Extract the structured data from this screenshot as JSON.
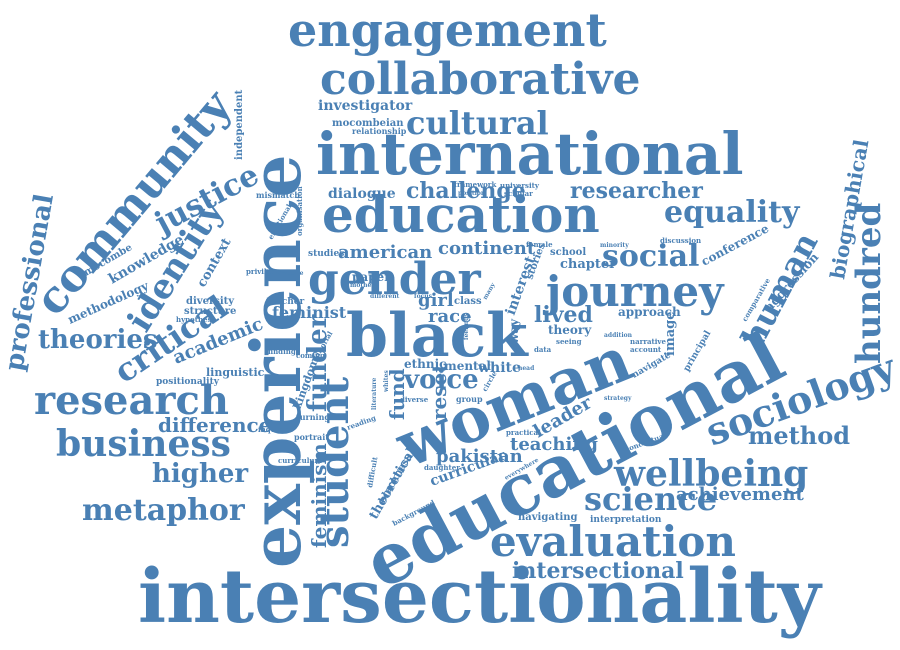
{
  "palette": {
    "word_color": "#4a80b4",
    "background": "#ffffff"
  },
  "words": [
    {
      "id": "intersectionality",
      "text": "intersectionality",
      "weight": 100
    },
    {
      "id": "educational",
      "text": "educational",
      "weight": 98
    },
    {
      "id": "experience",
      "text": "experience",
      "weight": 95
    },
    {
      "id": "woman",
      "text": "woman",
      "weight": 92
    },
    {
      "id": "international",
      "text": "international",
      "weight": 88
    },
    {
      "id": "education",
      "text": "education",
      "weight": 85
    },
    {
      "id": "black",
      "text": "black",
      "weight": 84
    },
    {
      "id": "engagement",
      "text": "engagement",
      "weight": 80
    },
    {
      "id": "collaborative",
      "text": "collaborative",
      "weight": 78
    },
    {
      "id": "community",
      "text": "community",
      "weight": 72
    },
    {
      "id": "gender",
      "text": "gender",
      "weight": 70
    },
    {
      "id": "journey",
      "text": "journey",
      "weight": 66
    },
    {
      "id": "evaluation",
      "text": "evaluation",
      "weight": 64
    },
    {
      "id": "research",
      "text": "research",
      "weight": 62
    },
    {
      "id": "student",
      "text": "student",
      "weight": 60
    },
    {
      "id": "sociology",
      "text": "sociology",
      "weight": 58
    },
    {
      "id": "business",
      "text": "business",
      "weight": 56
    },
    {
      "id": "wellbeing",
      "text": "wellbeing",
      "weight": 55
    },
    {
      "id": "identity",
      "text": "identity",
      "weight": 54
    },
    {
      "id": "hundred",
      "text": "hundred",
      "weight": 53
    },
    {
      "id": "science",
      "text": "science",
      "weight": 52
    },
    {
      "id": "human",
      "text": "human",
      "weight": 50
    },
    {
      "id": "critical",
      "text": "critical",
      "weight": 49
    },
    {
      "id": "cultural",
      "text": "cultural",
      "weight": 48
    },
    {
      "id": "equality",
      "text": "equality",
      "weight": 47
    },
    {
      "id": "metaphor",
      "text": "metaphor",
      "weight": 46
    },
    {
      "id": "justice",
      "text": "justice",
      "weight": 45
    },
    {
      "id": "social",
      "text": "social",
      "weight": 44
    },
    {
      "id": "professional",
      "text": "professional",
      "weight": 43
    },
    {
      "id": "theories",
      "text": "theories",
      "weight": 42
    },
    {
      "id": "higher",
      "text": "higher",
      "weight": 41
    },
    {
      "id": "funder",
      "text": "funder",
      "weight": 40
    },
    {
      "id": "voice",
      "text": "voice",
      "weight": 40
    },
    {
      "id": "method",
      "text": "method",
      "weight": 39
    },
    {
      "id": "intersectional",
      "text": "intersectional",
      "weight": 38
    },
    {
      "id": "researcher",
      "text": "researcher",
      "weight": 37
    },
    {
      "id": "biographical",
      "text": "biographical",
      "weight": 36
    },
    {
      "id": "difference",
      "text": "difference",
      "weight": 35
    },
    {
      "id": "feminism",
      "text": "feminism",
      "weight": 34
    },
    {
      "id": "challenge",
      "text": "challenge",
      "weight": 34
    },
    {
      "id": "lived",
      "text": "lived",
      "weight": 33
    },
    {
      "id": "achievement",
      "text": "achievement",
      "weight": 33
    },
    {
      "id": "american",
      "text": "american",
      "weight": 32
    },
    {
      "id": "continent",
      "text": "continent",
      "weight": 32
    },
    {
      "id": "reset",
      "text": "reset",
      "weight": 32
    },
    {
      "id": "fund",
      "text": "fund",
      "weight": 31
    },
    {
      "id": "teaching",
      "text": "teaching",
      "weight": 31
    },
    {
      "id": "leader",
      "text": "leader",
      "weight": 30
    },
    {
      "id": "pakistan",
      "text": "pakistan",
      "weight": 30
    },
    {
      "id": "academic",
      "text": "academic",
      "weight": 30
    },
    {
      "id": "girl",
      "text": "girl",
      "weight": 30
    },
    {
      "id": "race",
      "text": "race",
      "weight": 30
    },
    {
      "id": "feminist",
      "text": "feminist",
      "weight": 29
    },
    {
      "id": "investigator",
      "text": "investigator",
      "weight": 28
    },
    {
      "id": "knowledge",
      "text": "knowledge",
      "weight": 27
    },
    {
      "id": "dialogue",
      "text": "dialogue",
      "weight": 27
    },
    {
      "id": "conference",
      "text": "conference",
      "weight": 26
    },
    {
      "id": "chapter",
      "text": "chapter",
      "weight": 26
    },
    {
      "id": "image",
      "text": "image",
      "weight": 26
    },
    {
      "id": "theoretical",
      "text": "theoretical",
      "weight": 26
    },
    {
      "id": "aggression",
      "text": "aggression",
      "weight": 25
    },
    {
      "id": "methodology",
      "text": "methodology",
      "weight": 25
    },
    {
      "id": "context",
      "text": "context",
      "weight": 25
    },
    {
      "id": "interest",
      "text": "interest",
      "weight": 25
    },
    {
      "id": "curricular",
      "text": "curricular",
      "weight": 25
    },
    {
      "id": "independent",
      "text": "independent",
      "weight": 24
    },
    {
      "id": "white",
      "text": "white",
      "weight": 24
    },
    {
      "id": "mental",
      "text": "mental",
      "weight": 24
    },
    {
      "id": "ethnic",
      "text": "ethnic",
      "weight": 24
    },
    {
      "id": "theory",
      "text": "theory",
      "weight": 24
    },
    {
      "id": "approach",
      "text": "approach",
      "weight": 24
    },
    {
      "id": "kingdom",
      "text": "kingdom",
      "weight": 24
    },
    {
      "id": "mocombeian",
      "text": "mocombeian",
      "weight": 22
    },
    {
      "id": "relationship",
      "text": "relationship",
      "weight": 22
    },
    {
      "id": "navigating",
      "text": "navigating",
      "weight": 22
    },
    {
      "id": "interpretation",
      "text": "interpretation",
      "weight": 22
    },
    {
      "id": "linguistic",
      "text": "linguistic",
      "weight": 22
    },
    {
      "id": "diversity",
      "text": "diversity",
      "weight": 22
    },
    {
      "id": "structure",
      "text": "structure",
      "weight": 22
    },
    {
      "id": "paper",
      "text": "paper",
      "weight": 22
    },
    {
      "id": "mismatch",
      "text": "mismatch",
      "weight": 20
    },
    {
      "id": "stories",
      "text": "stories",
      "weight": 20
    },
    {
      "id": "principal",
      "text": "principal",
      "weight": 20
    },
    {
      "id": "navigate",
      "text": "navigate",
      "weight": 20
    },
    {
      "id": "comparative",
      "text": "comparative",
      "weight": 20
    },
    {
      "id": "positionality",
      "text": "positionality",
      "weight": 20
    },
    {
      "id": "studies",
      "text": "studies",
      "weight": 20
    },
    {
      "id": "school",
      "text": "school",
      "weight": 20
    },
    {
      "id": "blackness",
      "text": "blackness",
      "weight": 20
    },
    {
      "id": "mocombe",
      "text": "mocombe",
      "weight": 20
    },
    {
      "id": "class",
      "text": "class",
      "weight": 18
    },
    {
      "id": "teacher",
      "text": "teacher",
      "weight": 18
    },
    {
      "id": "turning",
      "text": "turning",
      "weight": 18
    },
    {
      "id": "reading",
      "text": "reading",
      "weight": 18
    },
    {
      "id": "discussion",
      "text": "discussion",
      "weight": 18
    },
    {
      "id": "framework",
      "text": "framework",
      "weight": 18
    },
    {
      "id": "portrait",
      "text": "portrait",
      "weight": 18
    },
    {
      "id": "inquiries",
      "text": "inquiries",
      "weight": 18
    },
    {
      "id": "privilege",
      "text": "privilege",
      "weight": 18
    },
    {
      "id": "practical",
      "text": "practical",
      "weight": 18
    },
    {
      "id": "curriculum",
      "text": "curriculum",
      "weight": 16
    },
    {
      "id": "organisation",
      "text": "organisation",
      "weight": 16
    },
    {
      "id": "emotional",
      "text": "emotional",
      "weight": 16
    },
    {
      "id": "daughter",
      "text": "daughter",
      "weight": 16
    },
    {
      "id": "conceptual",
      "text": "conceptual",
      "weight": 16
    },
    {
      "id": "background",
      "text": "background",
      "weight": 16
    },
    {
      "id": "finding",
      "text": "finding",
      "weight": 16
    },
    {
      "id": "group",
      "text": "group",
      "weight": 16
    },
    {
      "id": "university",
      "text": "university",
      "weight": 16
    },
    {
      "id": "scholar",
      "text": "scholar",
      "weight": 16
    },
    {
      "id": "hypothesi",
      "text": "hypothesi",
      "weight": 16
    },
    {
      "id": "difficult",
      "text": "difficult",
      "weight": 16
    },
    {
      "id": "editorial",
      "text": "editorial",
      "weight": 16
    },
    {
      "id": "female",
      "text": "female",
      "weight": 16
    },
    {
      "id": "coming",
      "text": "coming",
      "weight": 16
    },
    {
      "id": "diverse",
      "text": "diverse",
      "weight": 16
    },
    {
      "id": "focus",
      "text": "focus",
      "weight": 16
    },
    {
      "id": "different",
      "text": "different",
      "weight": 16
    },
    {
      "id": "narrative",
      "text": "narrative",
      "weight": 16
    },
    {
      "id": "account",
      "text": "account",
      "weight": 16
    },
    {
      "id": "seeing",
      "text": "seeing",
      "weight": 16
    },
    {
      "id": "minority",
      "text": "minority",
      "weight": 16
    },
    {
      "id": "strategy",
      "text": "strategy",
      "weight": 16
    },
    {
      "id": "addition",
      "text": "addition",
      "weight": 16
    },
    {
      "id": "circle",
      "text": "circle",
      "weight": 16
    },
    {
      "id": "function",
      "text": "function",
      "weight": 16
    },
    {
      "id": "practice",
      "text": "practice",
      "weight": 16
    },
    {
      "id": "way",
      "text": "way",
      "weight": 18
    },
    {
      "id": "position",
      "text": "position",
      "weight": 16
    },
    {
      "id": "mother",
      "text": "mother",
      "weight": 16
    },
    {
      "id": "literature",
      "text": "literature",
      "weight": 16
    },
    {
      "id": "everywhere",
      "text": "everywhere",
      "weight": 16
    },
    {
      "id": "data",
      "text": "data",
      "weight": 16
    },
    {
      "id": "whites",
      "text": "whites",
      "weight": 16
    },
    {
      "id": "feelings",
      "text": "feelings",
      "weight": 16
    },
    {
      "id": "head",
      "text": "head",
      "weight": 16
    },
    {
      "id": "many",
      "text": "many",
      "weight": 16
    }
  ]
}
